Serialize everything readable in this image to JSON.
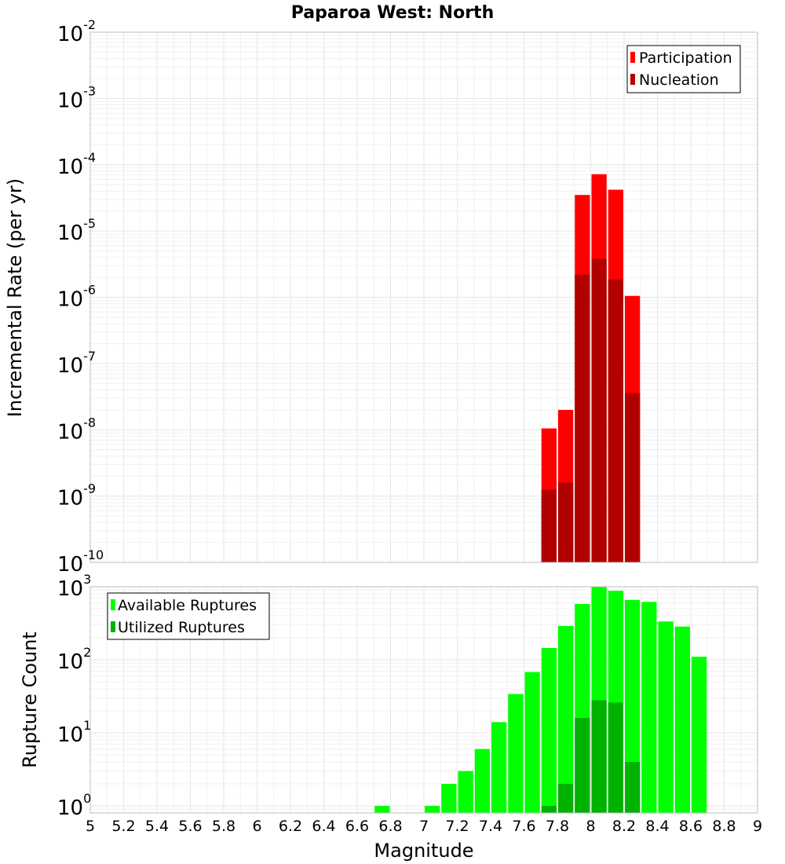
{
  "chart_data": [
    {
      "type": "bar",
      "title": "Paparoa West: North",
      "xlabel": "",
      "ylabel": "Incremental Rate (per yr)",
      "xlim": [
        5,
        9
      ],
      "ylim": [
        1e-10,
        0.01
      ],
      "log_y": true,
      "grid": true,
      "bar_width": 0.1,
      "legend": {
        "placement": "top-right"
      },
      "series": [
        {
          "name": "Participation",
          "color": "#ff0000",
          "x": [
            7.75,
            7.85,
            7.95,
            8.05,
            8.15,
            8.25
          ],
          "values": [
            1.05e-08,
            2e-08,
            3.5e-05,
            7.2e-05,
            4.2e-05,
            1.05e-06
          ]
        },
        {
          "name": "Nucleation",
          "color": "#b20000",
          "x": [
            7.75,
            7.85,
            7.95,
            8.05,
            8.15,
            8.25
          ],
          "values": [
            1.25e-09,
            1.6e-09,
            2.2e-06,
            3.8e-06,
            1.85e-06,
            3.6e-08
          ]
        }
      ]
    },
    {
      "type": "bar",
      "title": "",
      "xlabel": "Magnitude",
      "ylabel": "Rupture Count",
      "xlim": [
        5,
        9
      ],
      "ylim": [
        0.8,
        1000
      ],
      "log_y": true,
      "grid": true,
      "bar_width": 0.1,
      "legend": {
        "placement": "top-left"
      },
      "x_ticks": [
        "5",
        "5.2",
        "5.4",
        "5.6",
        "5.8",
        "6",
        "6.2",
        "6.4",
        "6.6",
        "6.8",
        "7",
        "7.2",
        "7.4",
        "7.6",
        "7.8",
        "8",
        "8.2",
        "8.4",
        "8.6",
        "8.8",
        "9"
      ],
      "series": [
        {
          "name": "Available Ruptures",
          "color": "#00ff00",
          "x": [
            6.75,
            7.05,
            7.15,
            7.25,
            7.35,
            7.45,
            7.55,
            7.65,
            7.75,
            7.85,
            7.95,
            8.05,
            8.15,
            8.25,
            8.35,
            8.45,
            8.55,
            8.65
          ],
          "values": [
            1,
            1,
            2,
            3,
            6,
            14,
            34,
            68,
            145,
            290,
            580,
            1000,
            880,
            660,
            620,
            335,
            285,
            110
          ]
        },
        {
          "name": "Utilized Ruptures",
          "color": "#00b200",
          "x": [
            7.75,
            7.85,
            7.95,
            8.05,
            8.15,
            8.25
          ],
          "values": [
            1,
            2,
            16,
            28,
            26,
            4
          ]
        }
      ]
    }
  ],
  "top_y_ticks": [
    {
      "base": "10",
      "exp": "-10",
      "value": 1e-10
    },
    {
      "base": "10",
      "exp": "-9",
      "value": 1e-09
    },
    {
      "base": "10",
      "exp": "-8",
      "value": 1e-08
    },
    {
      "base": "10",
      "exp": "-7",
      "value": 1e-07
    },
    {
      "base": "10",
      "exp": "-6",
      "value": 1e-06
    },
    {
      "base": "10",
      "exp": "-5",
      "value": 1e-05
    },
    {
      "base": "10",
      "exp": "-4",
      "value": 0.0001
    },
    {
      "base": "10",
      "exp": "-3",
      "value": 0.001
    },
    {
      "base": "10",
      "exp": "-2",
      "value": 0.01
    }
  ],
  "bottom_y_ticks": [
    {
      "base": "10",
      "exp": "0",
      "value": 1
    },
    {
      "base": "10",
      "exp": "1",
      "value": 10
    },
    {
      "base": "10",
      "exp": "2",
      "value": 100
    },
    {
      "base": "10",
      "exp": "3",
      "value": 1000
    }
  ]
}
